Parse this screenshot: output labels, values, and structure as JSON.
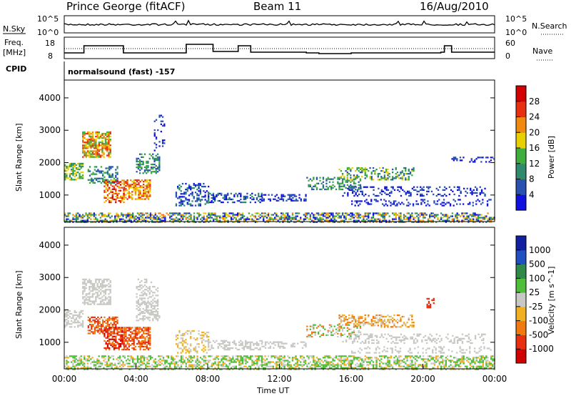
{
  "header": {
    "station": "Prince George (fitACF)",
    "beam": "Beam 11",
    "date": "16/Aug/2010"
  },
  "panels": {
    "nsky": {
      "label": "N.Sky",
      "ticks": [
        "10^5",
        "10^0"
      ],
      "right_label": "N.Search",
      "right_ticks": [
        "10^5",
        "10^0"
      ]
    },
    "freq": {
      "label_line1": "Freq.",
      "label_line2": "[MHz]",
      "ticks": [
        "18",
        "8"
      ],
      "right_label": "Nave",
      "right_ticks": [
        "60",
        "0"
      ]
    },
    "cpid": {
      "label": "CPID",
      "text": "normalsound (fast) -157"
    }
  },
  "chart_data": [
    {
      "type": "heatmap",
      "name": "power",
      "ylabel": "Slant Range [km]",
      "ylim": [
        180,
        4550
      ],
      "yticks": [
        "1000",
        "2000",
        "3000",
        "4000"
      ],
      "xlim": [
        0,
        24
      ],
      "colorbar": {
        "label": "Power [dB]",
        "ticks": [
          "4",
          "8",
          "12",
          "16",
          "20",
          "24",
          "28"
        ],
        "colors": [
          "#1010e0",
          "#2a50b0",
          "#2e8a6a",
          "#3fae3f",
          "#e8d000",
          "#f08a10",
          "#e83010",
          "#d20000"
        ]
      }
    },
    {
      "type": "heatmap",
      "name": "velocity",
      "ylabel": "Slant Range [km]",
      "ylim": [
        180,
        4550
      ],
      "yticks": [
        "1000",
        "2000",
        "3000",
        "4000"
      ],
      "xlim": [
        0,
        24
      ],
      "xticks": [
        "00:00",
        "04:00",
        "08:00",
        "12:00",
        "16:00",
        "20:00",
        "00:00"
      ],
      "xlabel": "Time UT",
      "colorbar": {
        "label": "Velocity [m s^-1]",
        "ticks": [
          "1000",
          "500",
          "100",
          "25",
          "-25",
          "-100",
          "-500",
          "-1000"
        ],
        "colors": [
          "#1020a0",
          "#2050c0",
          "#2f8a4a",
          "#4fbf3a",
          "#c8c8c4",
          "#f0b020",
          "#f07a10",
          "#e83010",
          "#d00000"
        ]
      }
    }
  ]
}
